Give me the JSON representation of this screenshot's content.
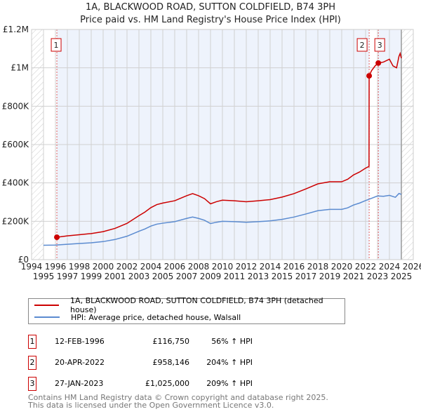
{
  "chart_data": {
    "type": "line",
    "title": "1A, BLACKWOOD ROAD, SUTTON COLDFIELD, B74 3PH",
    "subtitle": "Price paid vs. HM Land Registry's House Price Index (HPI)",
    "xlim": [
      1994,
      2026
    ],
    "ylim": [
      0,
      1200000
    ],
    "x_ticks": [
      "1994",
      "1995",
      "1996",
      "1997",
      "1998",
      "1999",
      "2000",
      "2001",
      "2002",
      "2003",
      "2004",
      "2005",
      "2006",
      "2007",
      "2008",
      "2009",
      "2010",
      "2011",
      "2012",
      "2013",
      "2014",
      "2015",
      "2016",
      "2017",
      "2018",
      "2019",
      "2020",
      "2021",
      "2022",
      "2023",
      "2024",
      "2025",
      "2026"
    ],
    "y_ticks": [
      {
        "v": 0,
        "label": "£0"
      },
      {
        "v": 200000,
        "label": "£200K"
      },
      {
        "v": 400000,
        "label": "£400K"
      },
      {
        "v": 600000,
        "label": "£600K"
      },
      {
        "v": 800000,
        "label": "£800K"
      },
      {
        "v": 1000000,
        "label": "£1M"
      },
      {
        "v": 1200000,
        "label": "£1.2M"
      }
    ],
    "grid": true,
    "series": [
      {
        "name": "1A, BLACKWOOD ROAD, SUTTON COLDFIELD, B74 3PH (detached house)",
        "color": "#cc0000",
        "x": [
          1996.12,
          1997,
          1998,
          1999,
          2000,
          2001,
          2002,
          2003,
          2003.5,
          2004,
          2004.5,
          2005,
          2006,
          2007,
          2007.5,
          2008,
          2008.5,
          2009,
          2009.5,
          2010,
          2011,
          2012,
          2013,
          2014,
          2015,
          2016,
          2017,
          2018,
          2019,
          2020,
          2020.5,
          2021,
          2021.5,
          2022,
          2022.29,
          2022.3,
          2022.5,
          2022.8,
          2023.07,
          2023.5,
          2024,
          2024.3,
          2024.6,
          2024.8,
          2024.9,
          2025
        ],
        "y": [
          116750,
          124000,
          130000,
          136000,
          146000,
          163000,
          189000,
          229000,
          248000,
          271000,
          287000,
          295000,
          307000,
          333000,
          344000,
          333000,
          318000,
          291000,
          302000,
          310000,
          307000,
          302000,
          307000,
          313000,
          326000,
          344000,
          369000,
          395000,
          406000,
          406000,
          419000,
          442000,
          457000,
          477000,
          486000,
          958146,
          985000,
          1010000,
          1025000,
          1030000,
          1045000,
          1010000,
          1000000,
          1060000,
          1075000,
          1050000
        ]
      },
      {
        "name": "HPI: Average price, detached house, Walsall",
        "color": "#5b8bd0",
        "x": [
          1995,
          1996,
          1997,
          1998,
          1999,
          2000,
          2001,
          2002,
          2003,
          2003.5,
          2004,
          2004.5,
          2005,
          2006,
          2007,
          2007.5,
          2008,
          2008.5,
          2009,
          2009.5,
          2010,
          2011,
          2012,
          2013,
          2014,
          2015,
          2016,
          2017,
          2018,
          2019,
          2020,
          2020.5,
          2021,
          2021.5,
          2022,
          2022.3,
          2023,
          2023.5,
          2024,
          2024.5,
          2024.8,
          2025
        ],
        "y": [
          75000,
          76000,
          80000,
          84000,
          88000,
          94000,
          105000,
          122000,
          148000,
          160000,
          175000,
          185000,
          190000,
          198000,
          215000,
          222000,
          215000,
          205000,
          188000,
          195000,
          200000,
          198000,
          195000,
          198000,
          202000,
          210000,
          222000,
          238000,
          255000,
          262000,
          262000,
          270000,
          285000,
          295000,
          308000,
          315000,
          332000,
          330000,
          335000,
          325000,
          345000,
          340000
        ]
      }
    ],
    "sales": [
      {
        "n": "1",
        "date": "12-FEB-1996",
        "x": 1996.12,
        "price": "£116,750",
        "value": 116750,
        "hpi": "56% ↑ HPI"
      },
      {
        "n": "2",
        "date": "20-APR-2022",
        "x": 2022.3,
        "price": "£958,146",
        "value": 958146,
        "hpi": "204% ↑ HPI"
      },
      {
        "n": "3",
        "date": "27-JAN-2023",
        "x": 2023.07,
        "price": "£1,025,000",
        "value": 1025000,
        "hpi": "209% ↑ HPI"
      }
    ],
    "legend_placement": "below"
  },
  "footer": {
    "line1": "Contains HM Land Registry data © Crown copyright and database right 2025.",
    "line2": "This data is licensed under the Open Government Licence v3.0."
  }
}
